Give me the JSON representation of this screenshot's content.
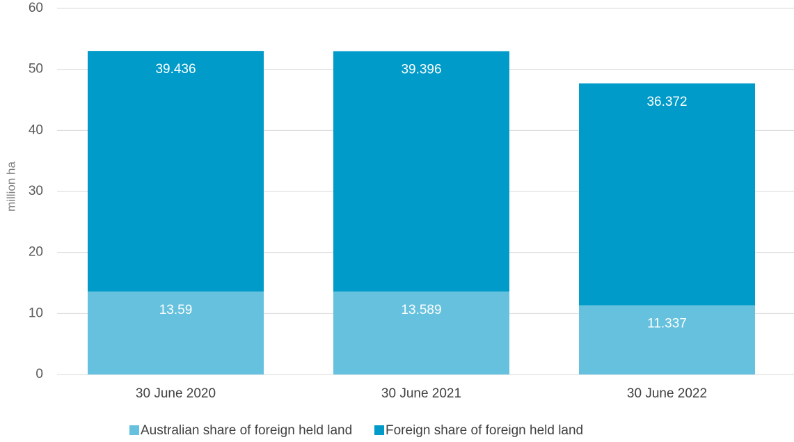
{
  "chart_data": {
    "type": "stacked_bar",
    "y_label": "million ha",
    "categories": [
      "30 June 2020",
      "30 June 2021",
      "30 June 2022"
    ],
    "series": [
      {
        "name": "Australian share of foreign held land",
        "color": "#65c1dd",
        "values": [
          13.59,
          13.589,
          11.337
        ]
      },
      {
        "name": "Foreign share of foreign held land",
        "color": "#009bc8",
        "values": [
          39.436,
          39.396,
          36.372
        ]
      }
    ],
    "ylim": [
      0,
      60
    ],
    "yticks": [
      0,
      10,
      20,
      30,
      40,
      50,
      60
    ],
    "grid": true,
    "legend": "bottom"
  }
}
